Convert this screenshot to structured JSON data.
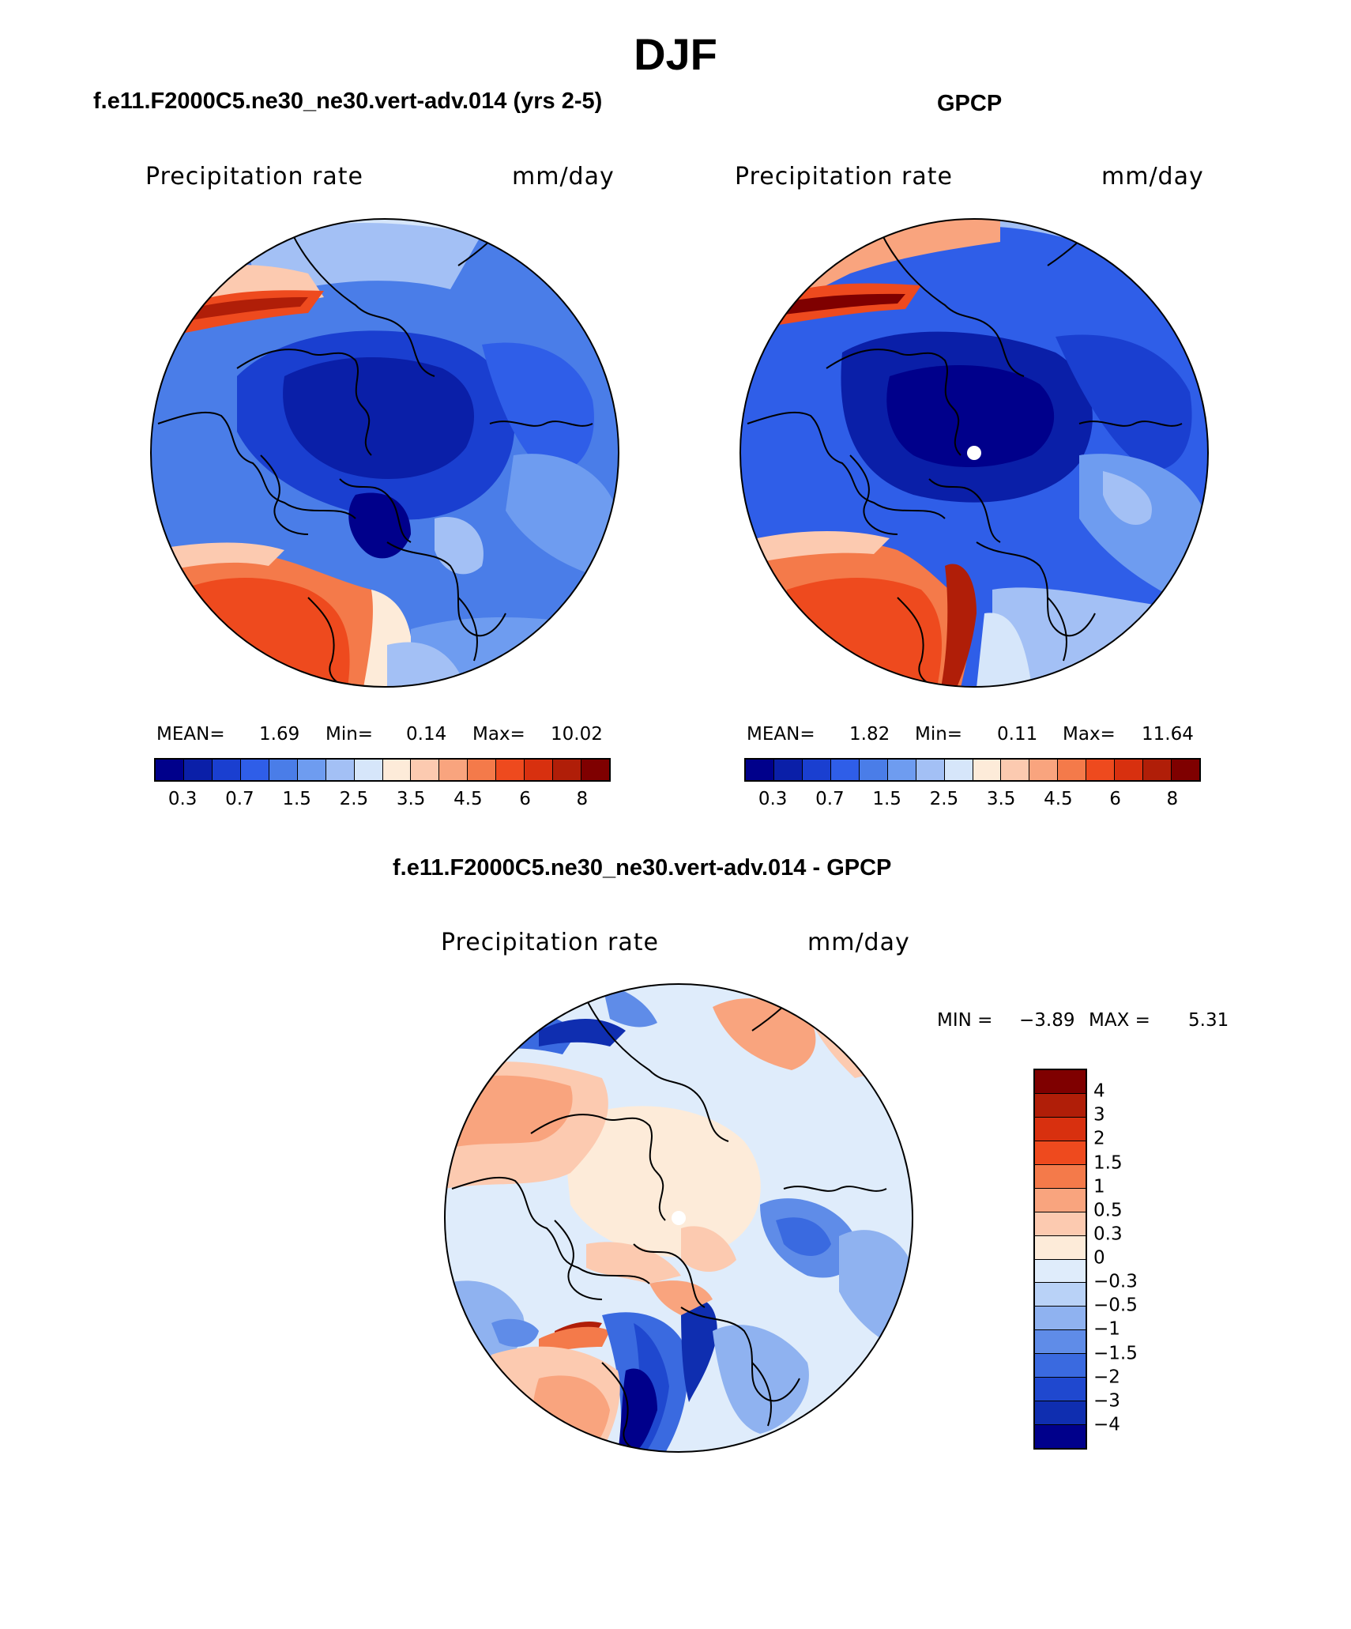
{
  "figure": {
    "season": "DJF",
    "panels": [
      {
        "id": "model",
        "case_title": "f.e11.F2000C5.ne30_ne30.vert-adv.014 (yrs 2-5)",
        "variable": "Precipitation rate",
        "units": "mm/day",
        "stats": {
          "mean_label": "MEAN=",
          "mean": "1.69",
          "min_label": "Min=",
          "min": "0.14",
          "max_label": "Max=",
          "max": "10.02"
        }
      },
      {
        "id": "obs",
        "case_title": "GPCP",
        "variable": "Precipitation rate",
        "units": "mm/day",
        "stats": {
          "mean_label": "MEAN=",
          "mean": "1.82",
          "min_label": "Min=",
          "min": "0.11",
          "max_label": "Max=",
          "max": "11.64"
        }
      },
      {
        "id": "diff",
        "case_title": "f.e11.F2000C5.ne30_ne30.vert-adv.014 - GPCP",
        "variable": "Precipitation rate",
        "units": "mm/day",
        "stats": {
          "min_label": "MIN =",
          "min": "−3.89",
          "max_label": "MAX =",
          "max": "5.31"
        }
      }
    ],
    "abs_colorbar": {
      "colors": [
        "#00008b",
        "#0a1fa8",
        "#1a3fd0",
        "#2f5ee8",
        "#4a7de8",
        "#6e9cf0",
        "#a3c0f5",
        "#d6e6fa",
        "#fdebd9",
        "#fccab0",
        "#f9a47e",
        "#f47a4a",
        "#ee4a1e",
        "#d8300f",
        "#b01e08",
        "#7f0000"
      ],
      "tick_labels": [
        "0.3",
        "0.7",
        "1.5",
        "2.5",
        "3.5",
        "4.5",
        "6",
        "8"
      ]
    },
    "diff_colorbar": {
      "colors": [
        "#7f0000",
        "#b01e08",
        "#d8300f",
        "#ee4a1e",
        "#f47a4a",
        "#f9a47e",
        "#fccab0",
        "#fdebd9",
        "#dfecfb",
        "#b9d2f7",
        "#8fb2f0",
        "#5f8ce8",
        "#3a6ae0",
        "#1f48cf",
        "#0f2eb0",
        "#00008b"
      ],
      "tick_labels": [
        "4",
        "3",
        "2",
        "1.5",
        "1",
        "0.5",
        "0.3",
        "0",
        "−0.3",
        "−0.5",
        "−1",
        "−1.5",
        "−2",
        "−3",
        "−4"
      ]
    }
  }
}
